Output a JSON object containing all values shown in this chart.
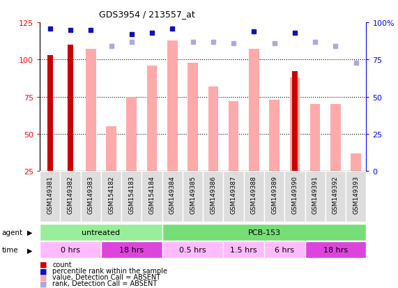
{
  "title": "GDS3954 / 213557_at",
  "samples": [
    "GSM149381",
    "GSM149382",
    "GSM149383",
    "GSM154182",
    "GSM154183",
    "GSM154184",
    "GSM149384",
    "GSM149385",
    "GSM149386",
    "GSM149387",
    "GSM149388",
    "GSM149389",
    "GSM149390",
    "GSM149391",
    "GSM149392",
    "GSM149393"
  ],
  "count_values": [
    103,
    110,
    null,
    null,
    null,
    null,
    null,
    null,
    null,
    null,
    null,
    null,
    92,
    null,
    null,
    null
  ],
  "rank_values": [
    96,
    95,
    95,
    null,
    92,
    93,
    96,
    null,
    null,
    null,
    94,
    null,
    93,
    null,
    null,
    null
  ],
  "value_absent": [
    null,
    null,
    107,
    55,
    75,
    96,
    113,
    98,
    82,
    72,
    107,
    73,
    88,
    70,
    70,
    37
  ],
  "rank_absent": [
    null,
    null,
    null,
    84,
    87,
    null,
    null,
    87,
    87,
    86,
    null,
    86,
    null,
    87,
    84,
    73
  ],
  "ylim_left": [
    25,
    125
  ],
  "ylim_right": [
    0,
    100
  ],
  "yticks_left": [
    25,
    50,
    75,
    100,
    125
  ],
  "yticks_right": [
    0,
    25,
    50,
    75,
    100
  ],
  "yticklabels_right": [
    "0",
    "25",
    "50",
    "75",
    "100%"
  ],
  "count_color": "#cc0000",
  "rank_color": "#1111bb",
  "value_absent_color": "#ffaaaa",
  "rank_absent_color": "#aaaadd",
  "agent_groups": [
    {
      "label": "untreated",
      "start": 0,
      "end": 6,
      "color": "#99ee99"
    },
    {
      "label": "PCB-153",
      "start": 6,
      "end": 16,
      "color": "#77dd77"
    }
  ],
  "time_groups": [
    {
      "label": "0 hrs",
      "start": 0,
      "end": 3,
      "color": "#ffbbff"
    },
    {
      "label": "18 hrs",
      "start": 3,
      "end": 6,
      "color": "#dd44dd"
    },
    {
      "label": "0.5 hrs",
      "start": 6,
      "end": 9,
      "color": "#ffbbff"
    },
    {
      "label": "1.5 hrs",
      "start": 9,
      "end": 11,
      "color": "#ffbbff"
    },
    {
      "label": "6 hrs",
      "start": 11,
      "end": 13,
      "color": "#ffbbff"
    },
    {
      "label": "18 hrs",
      "start": 13,
      "end": 16,
      "color": "#dd44dd"
    }
  ],
  "legend_items": [
    {
      "label": "count",
      "color": "#cc0000"
    },
    {
      "label": "percentile rank within the sample",
      "color": "#1111bb"
    },
    {
      "label": "value, Detection Call = ABSENT",
      "color": "#ffaaaa"
    },
    {
      "label": "rank, Detection Call = ABSENT",
      "color": "#aaaadd"
    }
  ]
}
